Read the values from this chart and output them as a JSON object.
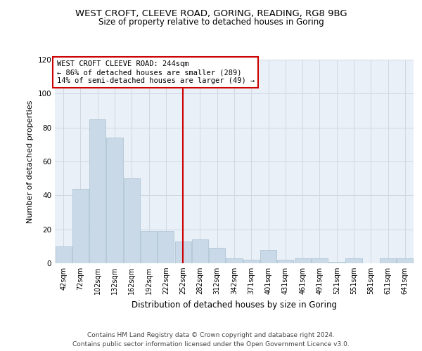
{
  "title": "WEST CROFT, CLEEVE ROAD, GORING, READING, RG8 9BG",
  "subtitle": "Size of property relative to detached houses in Goring",
  "xlabel": "Distribution of detached houses by size in Goring",
  "ylabel": "Number of detached properties",
  "categories": [
    "42sqm",
    "72sqm",
    "102sqm",
    "132sqm",
    "162sqm",
    "192sqm",
    "222sqm",
    "252sqm",
    "282sqm",
    "312sqm",
    "342sqm",
    "371sqm",
    "401sqm",
    "431sqm",
    "461sqm",
    "491sqm",
    "521sqm",
    "551sqm",
    "581sqm",
    "611sqm",
    "641sqm"
  ],
  "values": [
    10,
    44,
    85,
    74,
    50,
    19,
    19,
    13,
    14,
    9,
    3,
    2,
    8,
    2,
    3,
    3,
    1,
    3,
    0,
    3,
    3
  ],
  "bar_color": "#c9d9e8",
  "bar_edge_color": "#a8bfcf",
  "vline_x_index": 7.0,
  "vline_color": "#cc0000",
  "annotation_text": "WEST CROFT CLEEVE ROAD: 244sqm\n← 86% of detached houses are smaller (289)\n14% of semi-detached houses are larger (49) →",
  "annotation_box_color": "#ffffff",
  "annotation_box_edge_color": "#cc0000",
  "ylim": [
    0,
    120
  ],
  "yticks": [
    0,
    20,
    40,
    60,
    80,
    100,
    120
  ],
  "grid_color": "#d0d8e4",
  "bg_color": "#eaf0f8",
  "footer_text": "Contains HM Land Registry data © Crown copyright and database right 2024.\nContains public sector information licensed under the Open Government Licence v3.0.",
  "title_fontsize": 9.5,
  "subtitle_fontsize": 8.5,
  "xlabel_fontsize": 8.5,
  "ylabel_fontsize": 8,
  "footer_fontsize": 6.5,
  "annotation_fontsize": 7.5
}
